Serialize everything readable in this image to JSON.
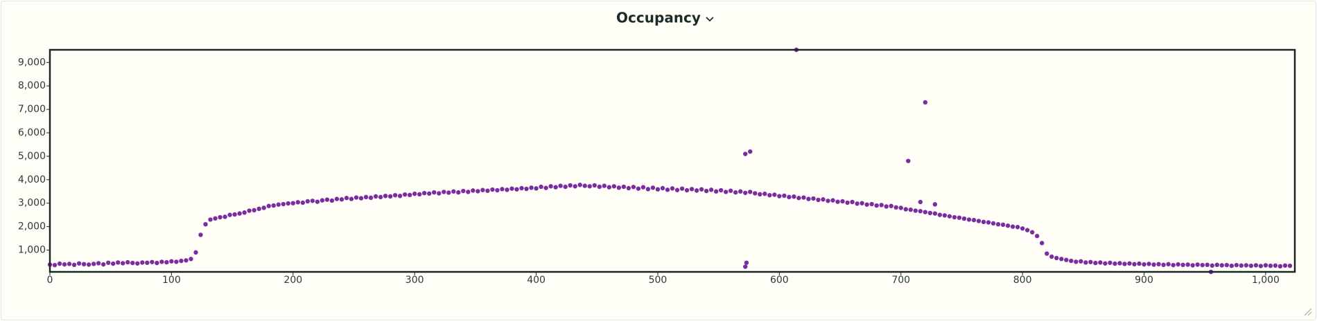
{
  "chart_data": {
    "type": "scatter",
    "title": "Occupancy",
    "color": "#7b2ca0",
    "x": [
      0,
      4,
      8,
      12,
      16,
      20,
      24,
      28,
      32,
      36,
      40,
      44,
      48,
      52,
      56,
      60,
      64,
      68,
      72,
      76,
      80,
      84,
      88,
      92,
      96,
      100,
      104,
      108,
      112,
      116,
      120,
      124,
      128,
      132,
      136,
      140,
      144,
      148,
      152,
      156,
      160,
      164,
      168,
      172,
      176,
      180,
      184,
      188,
      192,
      196,
      200,
      204,
      208,
      212,
      216,
      220,
      224,
      228,
      232,
      236,
      240,
      244,
      248,
      252,
      256,
      260,
      264,
      268,
      272,
      276,
      280,
      284,
      288,
      292,
      296,
      300,
      304,
      308,
      312,
      316,
      320,
      324,
      328,
      332,
      336,
      340,
      344,
      348,
      352,
      356,
      360,
      364,
      368,
      372,
      376,
      380,
      384,
      388,
      392,
      396,
      400,
      404,
      408,
      412,
      416,
      420,
      424,
      428,
      432,
      436,
      440,
      444,
      448,
      452,
      456,
      460,
      464,
      468,
      472,
      476,
      480,
      484,
      488,
      492,
      496,
      500,
      504,
      508,
      512,
      516,
      520,
      524,
      528,
      532,
      536,
      540,
      544,
      548,
      552,
      556,
      560,
      564,
      568,
      572,
      576,
      580,
      584,
      588,
      592,
      596,
      600,
      604,
      608,
      612,
      616,
      620,
      624,
      628,
      632,
      636,
      640,
      644,
      648,
      652,
      656,
      660,
      664,
      668,
      672,
      676,
      680,
      684,
      688,
      692,
      696,
      700,
      704,
      708,
      712,
      716,
      720,
      724,
      728,
      732,
      736,
      740,
      744,
      748,
      752,
      756,
      760,
      764,
      768,
      772,
      776,
      780,
      784,
      788,
      792,
      796,
      800,
      804,
      808,
      812,
      816,
      820,
      824,
      828,
      832,
      836,
      840,
      844,
      848,
      852,
      856,
      860,
      864,
      868,
      872,
      876,
      880,
      884,
      888,
      892,
      896,
      900,
      904,
      908,
      912,
      916,
      920,
      924,
      928,
      932,
      936,
      940,
      944,
      948,
      952,
      956,
      960,
      964,
      968,
      972,
      976,
      980,
      984,
      988,
      992,
      996,
      1000,
      1004,
      1008,
      1012,
      1016,
      1020,
      572,
      576,
      572,
      573,
      614,
      706,
      720,
      716,
      728,
      955
    ],
    "values": [
      380,
      360,
      420,
      390,
      410,
      370,
      430,
      400,
      380,
      410,
      440,
      390,
      460,
      420,
      470,
      440,
      480,
      450,
      430,
      470,
      460,
      490,
      450,
      500,
      480,
      520,
      500,
      540,
      560,
      620,
      900,
      1650,
      2100,
      2300,
      2350,
      2400,
      2420,
      2500,
      2520,
      2560,
      2600,
      2680,
      2700,
      2760,
      2800,
      2880,
      2900,
      2940,
      2960,
      2990,
      3000,
      3040,
      3020,
      3080,
      3100,
      3060,
      3120,
      3150,
      3110,
      3180,
      3160,
      3220,
      3180,
      3240,
      3210,
      3260,
      3230,
      3290,
      3260,
      3310,
      3290,
      3340,
      3310,
      3370,
      3350,
      3400,
      3380,
      3430,
      3410,
      3460,
      3420,
      3480,
      3450,
      3500,
      3460,
      3520,
      3480,
      3540,
      3510,
      3560,
      3530,
      3580,
      3550,
      3600,
      3570,
      3620,
      3590,
      3640,
      3610,
      3660,
      3630,
      3700,
      3650,
      3720,
      3680,
      3740,
      3700,
      3760,
      3720,
      3780,
      3740,
      3720,
      3760,
      3700,
      3740,
      3680,
      3720,
      3660,
      3700,
      3640,
      3690,
      3620,
      3680,
      3600,
      3660,
      3590,
      3640,
      3570,
      3630,
      3560,
      3620,
      3550,
      3600,
      3540,
      3590,
      3520,
      3570,
      3500,
      3550,
      3480,
      3530,
      3460,
      3500,
      3440,
      3480,
      3420,
      3380,
      3400,
      3340,
      3360,
      3300,
      3320,
      3260,
      3280,
      3220,
      3240,
      3180,
      3200,
      3140,
      3160,
      3100,
      3120,
      3060,
      3080,
      3020,
      3050,
      2980,
      3000,
      2940,
      2960,
      2900,
      2920,
      2860,
      2880,
      2820,
      2800,
      2740,
      2720,
      2680,
      2660,
      2620,
      2580,
      2560,
      2500,
      2480,
      2440,
      2400,
      2380,
      2340,
      2300,
      2280,
      2240,
      2200,
      2180,
      2140,
      2100,
      2080,
      2040,
      2000,
      1980,
      1920,
      1850,
      1760,
      1600,
      1300,
      850,
      720,
      660,
      620,
      580,
      540,
      500,
      520,
      470,
      490,
      450,
      470,
      430,
      460,
      420,
      440,
      410,
      430,
      400,
      420,
      390,
      410,
      380,
      400,
      370,
      400,
      360,
      390,
      370,
      380,
      350,
      380,
      360,
      370,
      340,
      370,
      350,
      360,
      330,
      360,
      340,
      350,
      330,
      350,
      320,
      350,
      330,
      340,
      310,
      340,
      330,
      5100,
      5200,
      290,
      460,
      9540,
      4800,
      7300,
      3050,
      2950,
      70
    ],
    "xlim": [
      0,
      1024
    ],
    "ylim": [
      70,
      9540
    ],
    "xticks": [
      0,
      100,
      200,
      300,
      400,
      500,
      600,
      700,
      800,
      900,
      {
        "value": 1000,
        "label": "1,000"
      }
    ],
    "yticks": [
      {
        "value": 1000,
        "label": "1,000"
      },
      {
        "value": 2000,
        "label": "2,000"
      },
      {
        "value": 3000,
        "label": "3,000"
      },
      {
        "value": 4000,
        "label": "4,000"
      },
      {
        "value": 5000,
        "label": "5,000"
      },
      {
        "value": 6000,
        "label": "6,000"
      },
      {
        "value": 7000,
        "label": "7,000"
      },
      {
        "value": 8000,
        "label": "8,000"
      },
      {
        "value": 9000,
        "label": "9,000"
      }
    ]
  }
}
